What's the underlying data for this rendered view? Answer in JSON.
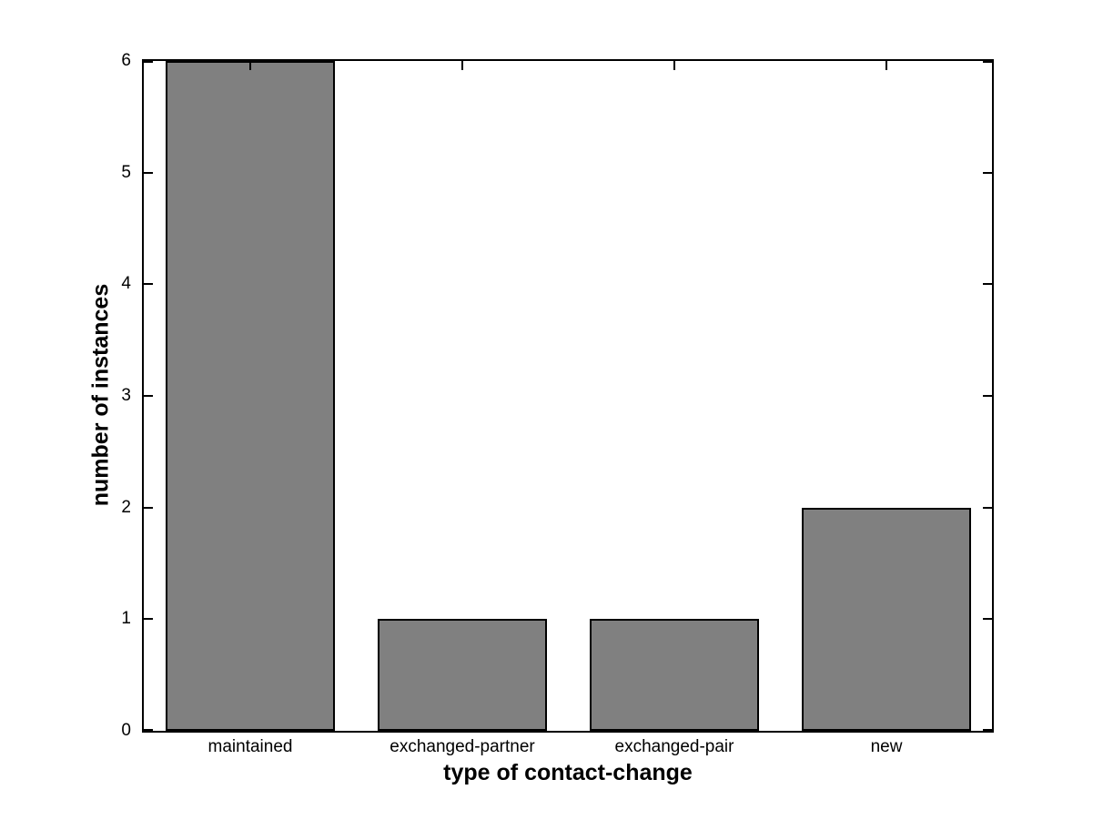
{
  "figure": {
    "background": "#ffffff"
  },
  "chart_data": {
    "type": "bar",
    "title": "",
    "categories": [
      "maintained",
      "exchanged-partner",
      "exchanged-pair",
      "new"
    ],
    "values": [
      6,
      1,
      1,
      2
    ],
    "xlabel": "type of contact-change",
    "ylabel": "number of instances",
    "ylim": [
      0,
      6
    ],
    "yticks": [
      0,
      1,
      2,
      3,
      4,
      5,
      6
    ],
    "bar_width_fraction": 0.8,
    "grid": false,
    "legend": null,
    "bar_color": "#808080",
    "bar_edge_color": "#000000",
    "axis_color": "#000000",
    "text_color": "#000000"
  }
}
